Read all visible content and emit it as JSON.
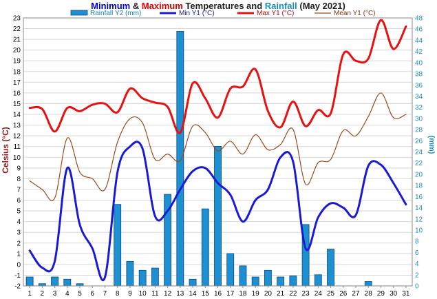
{
  "chart_data": {
    "type": "bar+line",
    "title": {
      "part1": "Minimum",
      "part2": " & ",
      "part3": "Maximum",
      "part4": " Temperatures and ",
      "part5": "Rainfall",
      "part6": " (May 2021)"
    },
    "colors": {
      "min": "#1a1ad6",
      "max": "#e81010",
      "mean": "#9a4a1a",
      "rain": "#1e8fd0",
      "rain_edge": "#0a4a80",
      "left_axis": "#8b1a1a",
      "right_axis": "#1e8fbf",
      "grid": "#d8d8d8",
      "title_blue": "#0000cc",
      "title_red": "#dd0000",
      "title_dark": "#222222",
      "title_rain": "#1a8fbf"
    },
    "left_axis": {
      "label": "Celsius (°C)",
      "min": -2,
      "max": 23,
      "step": 1
    },
    "right_axis": {
      "label": "(mm)",
      "min": 0,
      "max": 48,
      "step": 2
    },
    "x": [
      "1",
      "2",
      "3",
      "4",
      "5",
      "6",
      "7",
      "8",
      "9",
      "10",
      "11",
      "12",
      "13",
      "14",
      "15",
      "16",
      "17",
      "18",
      "19",
      "20",
      "21",
      "22",
      "23",
      "24",
      "25",
      "26",
      "27",
      "28",
      "29",
      "30",
      "31"
    ],
    "legend": [
      {
        "name": "Rainfall Y2 (mm)",
        "kind": "bar"
      },
      {
        "name": "Min Y1 (°C)",
        "kind": "min"
      },
      {
        "name": "Max Y1 (°C)",
        "kind": "max"
      },
      {
        "name": "Mean Y1 (°C)",
        "kind": "mean"
      }
    ],
    "series": {
      "rainfall": [
        1.6,
        0.4,
        1.6,
        1.2,
        0.4,
        0,
        0,
        14.6,
        4.4,
        2.8,
        3.2,
        16.4,
        45.6,
        1.2,
        13.8,
        25.0,
        5.8,
        3.6,
        1.6,
        2.8,
        1.6,
        1.8,
        11.0,
        2.0,
        6.6,
        0,
        0,
        0.8,
        0,
        0,
        0
      ],
      "min": [
        1.3,
        -0.3,
        0.3,
        9.0,
        3.7,
        1.5,
        -1.2,
        8.6,
        11.0,
        10.8,
        4.5,
        5.0,
        7.0,
        8.7,
        9.0,
        7.6,
        6.5,
        4.0,
        6.0,
        7.0,
        10.0,
        9.6,
        1.5,
        4.4,
        5.7,
        5.3,
        4.6,
        9.2,
        9.3,
        7.6,
        5.6
      ],
      "max": [
        14.6,
        14.5,
        12.4,
        14.6,
        14.3,
        14.9,
        15.0,
        14.2,
        16.4,
        15.5,
        15.1,
        14.7,
        12.3,
        16.9,
        15.5,
        13.7,
        16.4,
        16.6,
        18.2,
        14.3,
        12.8,
        15.2,
        12.9,
        14.4,
        14.1,
        19.6,
        19.0,
        19.2,
        22.8,
        20.1,
        22.2
      ],
      "mean": [
        7.8,
        7.0,
        6.2,
        11.8,
        8.6,
        8.0,
        7.0,
        11.4,
        13.6,
        13.2,
        9.8,
        10.3,
        9.7,
        12.9,
        12.3,
        10.6,
        11.5,
        10.3,
        12.1,
        10.7,
        11.2,
        12.6,
        7.5,
        9.5,
        9.8,
        12.5,
        12.0,
        13.8,
        16.0,
        13.7,
        14.0
      ]
    }
  }
}
